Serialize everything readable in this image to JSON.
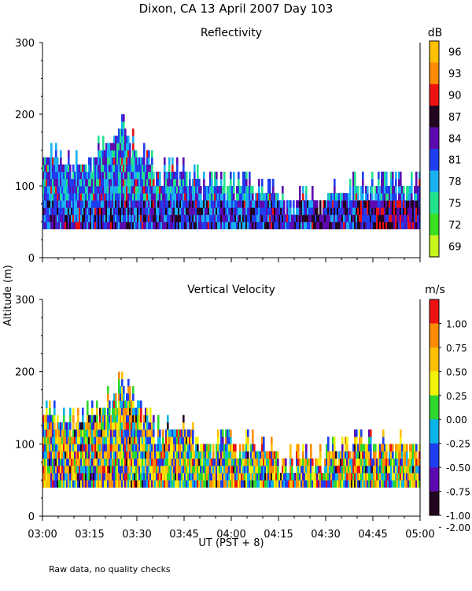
{
  "figure": {
    "title": "Dixon, CA 13 April 2007  Day 103",
    "ylabel": "Altitude (m)",
    "xlabel": "UT  (PST + 8)",
    "footnote": "Raw data, no quality checks"
  },
  "chart_data": [
    {
      "type": "heatmap",
      "title": "Reflectivity",
      "ylim": [
        0,
        300
      ],
      "yticks": [
        "0",
        "100",
        "200",
        "300"
      ],
      "xlim": [
        "03:00",
        "05:00"
      ],
      "xticks": [
        "03:00",
        "03:15",
        "03:30",
        "03:45",
        "04:00",
        "04:15",
        "04:30",
        "04:45",
        "05:00"
      ],
      "colorbar": {
        "unit": "dB",
        "labels": [
          "96",
          "93",
          "90",
          "87",
          "84",
          "81",
          "78",
          "75",
          "72",
          "69"
        ],
        "colors": [
          "#ffc000",
          "#ff8c00",
          "#ee1111",
          "#22061f",
          "#5c0ab0",
          "#1e3ef0",
          "#1ab0f2",
          "#22e28c",
          "#3adf22",
          "#c8f51c"
        ]
      },
      "min_altitude": 40,
      "echo_top_profile": {
        "time": [
          "03:00",
          "03:10",
          "03:17",
          "03:22",
          "03:25",
          "03:30",
          "03:35",
          "03:45",
          "03:50",
          "04:00",
          "04:15",
          "04:30",
          "04:45",
          "05:00"
        ],
        "top_altitude": [
          140,
          120,
          140,
          160,
          180,
          140,
          120,
          120,
          100,
          100,
          80,
          80,
          100,
          100
        ]
      }
    },
    {
      "type": "heatmap",
      "title": "Vertical Velocity",
      "ylim": [
        0,
        300
      ],
      "yticks": [
        "0",
        "100",
        "200",
        "300"
      ],
      "xlim": [
        "03:00",
        "05:00"
      ],
      "xticks": [
        "03:00",
        "03:15",
        "03:30",
        "03:45",
        "04:00",
        "04:15",
        "04:30",
        "04:45",
        "05:00"
      ],
      "colorbar": {
        "unit": "m/s",
        "labels": [
          "1.00",
          "0.75",
          "0.50",
          "0.25",
          "0.00",
          "-0.25",
          "-0.50",
          "-0.75",
          "-1.00",
          "-2.00"
        ],
        "colors": [
          "#ee1111",
          "#ff8c00",
          "#ffc000",
          "#f2f20a",
          "#2ed82e",
          "#0ab4e6",
          "#1e3ef0",
          "#5c0ab0",
          "#22061f"
        ]
      },
      "min_altitude": 40,
      "echo_top_profile": {
        "time": [
          "03:00",
          "03:10",
          "03:17",
          "03:22",
          "03:25",
          "03:30",
          "03:35",
          "03:45",
          "03:50",
          "04:00",
          "04:15",
          "04:30",
          "04:45",
          "05:00"
        ],
        "top_altitude": [
          140,
          120,
          140,
          160,
          180,
          140,
          120,
          120,
          100,
          100,
          80,
          80,
          100,
          100
        ]
      }
    }
  ]
}
